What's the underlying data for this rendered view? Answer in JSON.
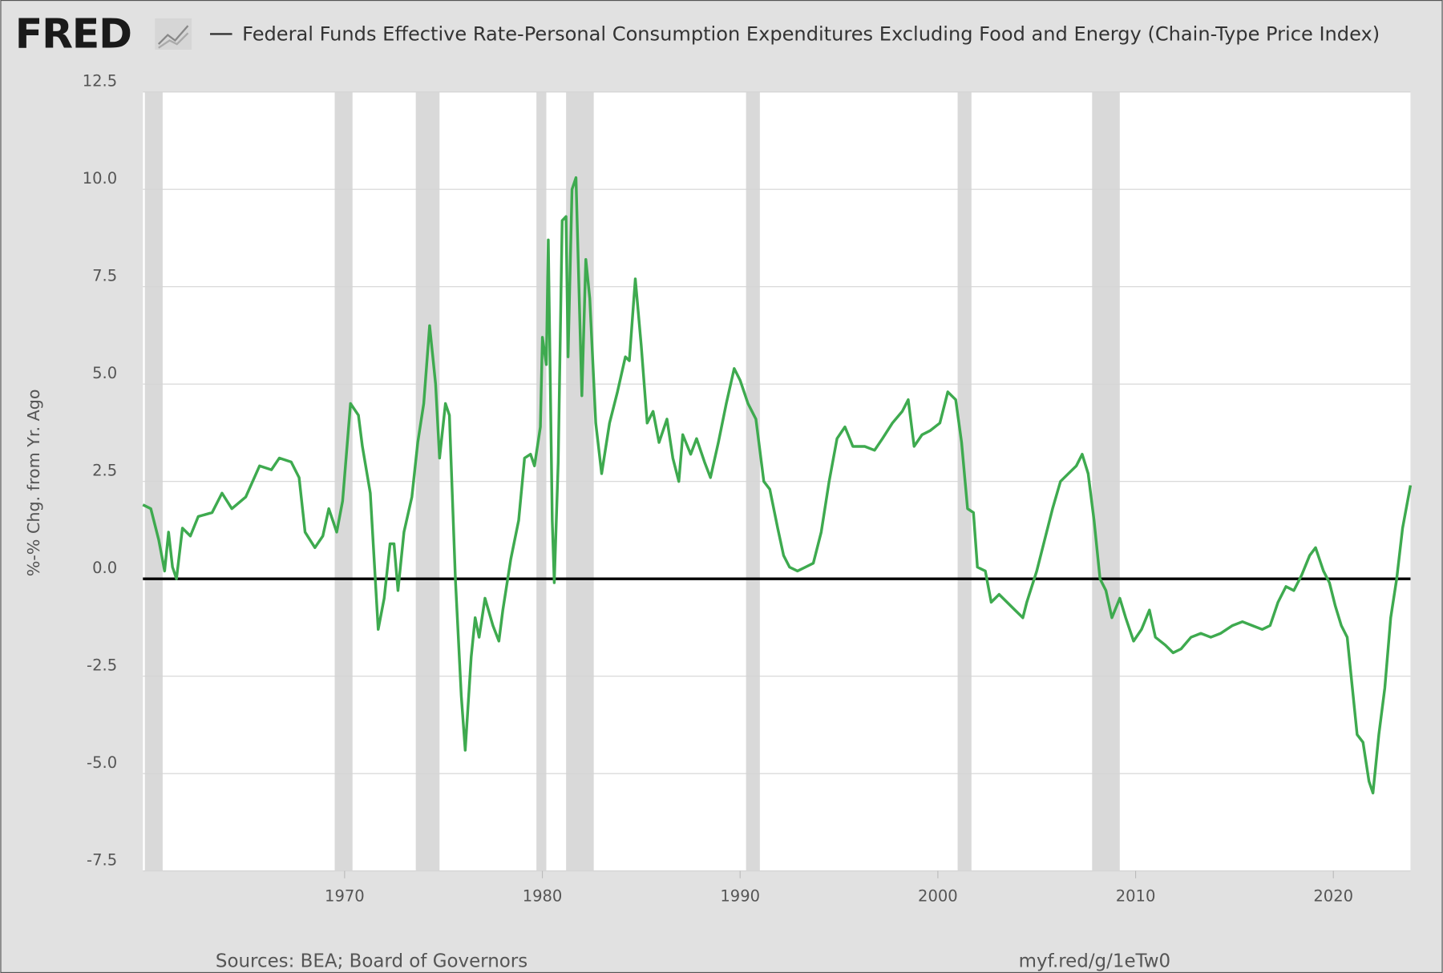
{
  "logo": "FRED",
  "chart_data": {
    "type": "line",
    "ylabel": "%-% Chg. from Yr. Ago",
    "sources": "Sources: BEA; Board of Governors",
    "link": "myf.red/g/1eTw0",
    "xlim": [
      1959.8,
      2023.9
    ],
    "xticks": [
      1970,
      1980,
      1990,
      2000,
      2010,
      2020
    ],
    "ylim": [
      -7.5,
      12.5
    ],
    "yticks": [
      -7.5,
      {
        "value": -5,
        "label": "-5.0"
      },
      -2.5,
      {
        "value": 0,
        "label": "0.0"
      },
      2.5,
      {
        "value": 5,
        "label": "5.0"
      },
      7.5,
      {
        "value": 10,
        "label": "10.0"
      },
      12.5
    ],
    "grid": true,
    "hline": 0,
    "recessions": [
      [
        1959.9,
        1960.8
      ],
      [
        1969.5,
        1970.4
      ],
      [
        1973.6,
        1974.8
      ],
      [
        1979.7,
        1980.2
      ],
      [
        1981.2,
        1982.6
      ],
      [
        1990.3,
        1991.0
      ],
      [
        2001.0,
        2001.7
      ],
      [
        2007.8,
        2009.2
      ]
    ],
    "x": [
      1959.8,
      1960.2,
      1960.6,
      1960.9,
      1961.1,
      1961.3,
      1961.5,
      1961.8,
      1962.2,
      1962.6,
      1963.3,
      1963.8,
      1964.3,
      1965.0,
      1965.7,
      1966.3,
      1966.7,
      1967.3,
      1967.7,
      1968.0,
      1968.5,
      1968.9,
      1969.2,
      1969.6,
      1969.9,
      1970.3,
      1970.7,
      1970.9,
      1971.3,
      1971.7,
      1972.0,
      1972.3,
      1972.5,
      1972.7,
      1973.0,
      1973.4,
      1973.7,
      1974.0,
      1974.3,
      1974.6,
      1974.8,
      1975.1,
      1975.3,
      1975.6,
      1975.9,
      1976.1,
      1976.4,
      1976.6,
      1976.8,
      1977.1,
      1977.5,
      1977.8,
      1978.0,
      1978.4,
      1978.8,
      1979.1,
      1979.4,
      1979.6,
      1979.9,
      1980.0,
      1980.2,
      1980.3,
      1980.5,
      1980.6,
      1980.8,
      1981.0,
      1981.2,
      1981.3,
      1981.5,
      1981.7,
      1982.0,
      1982.2,
      1982.4,
      1982.7,
      1983.0,
      1983.4,
      1983.8,
      1984.2,
      1984.4,
      1984.7,
      1985.0,
      1985.3,
      1985.6,
      1985.9,
      1986.3,
      1986.6,
      1986.9,
      1987.1,
      1987.5,
      1987.8,
      1988.2,
      1988.5,
      1988.9,
      1989.3,
      1989.7,
      1990.0,
      1990.4,
      1990.8,
      1991.2,
      1991.5,
      1991.9,
      1992.2,
      1992.5,
      1992.9,
      1993.3,
      1993.7,
      1994.1,
      1994.5,
      1994.9,
      1995.3,
      1995.7,
      1996.3,
      1996.8,
      1997.2,
      1997.7,
      1998.2,
      1998.5,
      1998.8,
      1999.2,
      1999.6,
      2000.1,
      2000.5,
      2000.9,
      2001.2,
      2001.5,
      2001.8,
      2002.0,
      2002.4,
      2002.7,
      2003.1,
      2003.5,
      2003.9,
      2004.3,
      2004.5,
      2005.0,
      2005.4,
      2005.8,
      2006.2,
      2006.6,
      2007.0,
      2007.3,
      2007.6,
      2007.9,
      2008.2,
      2008.5,
      2008.8,
      2009.2,
      2009.5,
      2009.9,
      2010.3,
      2010.7,
      2011.0,
      2011.5,
      2011.9,
      2012.3,
      2012.8,
      2013.3,
      2013.8,
      2014.3,
      2014.9,
      2015.4,
      2015.9,
      2016.4,
      2016.8,
      2017.2,
      2017.6,
      2018.0,
      2018.4,
      2018.8,
      2019.1,
      2019.5,
      2019.8,
      2020.1,
      2020.4,
      2020.7,
      2020.9,
      2021.2,
      2021.5,
      2021.8,
      2022.0,
      2022.3,
      2022.6,
      2022.9,
      2023.2,
      2023.5,
      2023.9
    ],
    "series": [
      {
        "name": "Federal Funds Effective Rate-Personal Consumption Expenditures Excluding Food and Energy (Chain-Type Price Index)",
        "color": "#3eaa4f",
        "values": [
          1.9,
          1.8,
          1.0,
          0.2,
          1.2,
          0.3,
          0.0,
          1.3,
          1.1,
          1.6,
          1.7,
          2.2,
          1.8,
          2.1,
          2.9,
          2.8,
          3.1,
          3.0,
          2.6,
          1.2,
          0.8,
          1.1,
          1.8,
          1.2,
          2.0,
          4.5,
          4.2,
          3.4,
          2.2,
          -1.3,
          -0.5,
          0.9,
          0.9,
          -0.3,
          1.2,
          2.1,
          3.5,
          4.5,
          6.5,
          5.0,
          3.1,
          4.5,
          4.2,
          0.0,
          -3.0,
          -4.4,
          -2.0,
          -1.0,
          -1.5,
          -0.5,
          -1.2,
          -1.6,
          -0.8,
          0.5,
          1.5,
          3.1,
          3.2,
          2.9,
          3.9,
          6.2,
          5.5,
          8.7,
          1.5,
          -0.1,
          3.0,
          9.2,
          9.3,
          5.7,
          10.0,
          10.3,
          4.7,
          8.2,
          7.2,
          4.0,
          2.7,
          4.0,
          4.8,
          5.7,
          5.6,
          7.7,
          6.0,
          4.0,
          4.3,
          3.5,
          4.1,
          3.1,
          2.5,
          3.7,
          3.2,
          3.6,
          3.0,
          2.6,
          3.5,
          4.5,
          5.4,
          5.1,
          4.5,
          4.1,
          2.5,
          2.3,
          1.3,
          0.6,
          0.3,
          0.2,
          0.3,
          0.4,
          1.2,
          2.5,
          3.6,
          3.9,
          3.4,
          3.4,
          3.3,
          3.6,
          4.0,
          4.3,
          4.6,
          3.4,
          3.7,
          3.8,
          4.0,
          4.8,
          4.6,
          3.5,
          1.8,
          1.7,
          0.3,
          0.2,
          -0.6,
          -0.4,
          -0.6,
          -0.8,
          -1.0,
          -0.6,
          0.2,
          1.0,
          1.8,
          2.5,
          2.7,
          2.9,
          3.2,
          2.7,
          1.5,
          0.0,
          -0.3,
          -1.0,
          -0.5,
          -1.0,
          -1.6,
          -1.3,
          -0.8,
          -1.5,
          -1.7,
          -1.9,
          -1.8,
          -1.5,
          -1.4,
          -1.5,
          -1.4,
          -1.2,
          -1.1,
          -1.2,
          -1.3,
          -1.2,
          -0.6,
          -0.2,
          -0.3,
          0.1,
          0.6,
          0.8,
          0.2,
          -0.1,
          -0.7,
          -1.2,
          -1.5,
          -2.5,
          -4.0,
          -4.2,
          -5.2,
          -5.5,
          -4.0,
          -2.8,
          -1.0,
          0.0,
          1.3,
          2.4
        ]
      }
    ]
  }
}
